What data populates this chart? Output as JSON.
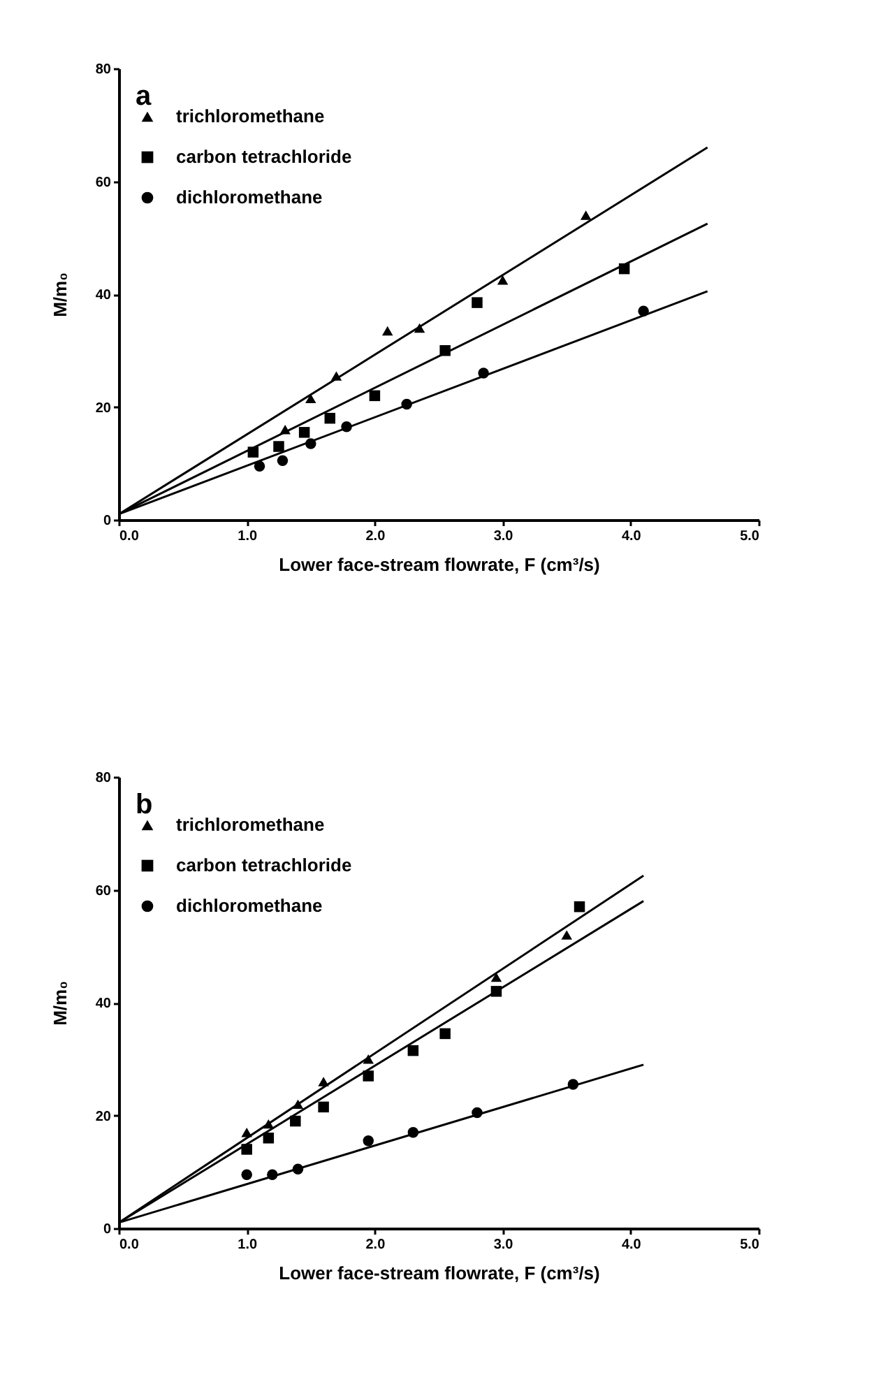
{
  "chart_data": [
    {
      "type": "scatter",
      "title": "a",
      "xlabel": "Lower face-stream flowrate, F (cm³/s)",
      "ylabel": "M/m₀",
      "xlim": [
        0,
        5
      ],
      "ylim": [
        0,
        80
      ],
      "xticks": [
        {
          "value": 0,
          "label": "0.0"
        },
        {
          "value": 1,
          "label": "1.0"
        },
        {
          "value": 2,
          "label": "2.0"
        },
        {
          "value": 3,
          "label": "3.0"
        },
        {
          "value": 4,
          "label": "4.0"
        },
        {
          "value": 5,
          "label": "5.0"
        }
      ],
      "yticks": [
        0,
        20,
        40,
        60,
        80
      ],
      "grid": false,
      "legend": "top left",
      "series": [
        {
          "name": "trichloromethane",
          "color": "#000000",
          "marker": "triangle",
          "x": [
            1.3,
            1.5,
            1.7,
            2.1,
            2.35,
            3.0,
            3.65
          ],
          "values": [
            16,
            21.5,
            25.5,
            33.5,
            34,
            42.5,
            54
          ]
        },
        {
          "name": "carbon  tetrachloride",
          "color": "#000000",
          "marker": "square",
          "x": [
            1.05,
            1.25,
            1.45,
            1.65,
            2.0,
            2.55,
            2.8,
            3.95
          ],
          "values": [
            12,
            13,
            15.5,
            18,
            22,
            30,
            38.5,
            44.5
          ]
        },
        {
          "name": "dichloromethane",
          "color": "#000000",
          "marker": "circle",
          "x": [
            1.1,
            1.28,
            1.5,
            1.78,
            2.25,
            2.85,
            4.1
          ],
          "values": [
            9.5,
            10.5,
            13.5,
            16.5,
            20.5,
            26,
            37
          ]
        },
        {
          "type": "line",
          "color": "#000000",
          "x": [
            0,
            4.6
          ],
          "values": [
            1,
            66
          ]
        },
        {
          "type": "line",
          "color": "#000000",
          "x": [
            0,
            4.6
          ],
          "values": [
            1,
            52.5
          ]
        },
        {
          "type": "line",
          "color": "#000000",
          "x": [
            0,
            4.6
          ],
          "values": [
            1,
            40.5
          ]
        }
      ]
    },
    {
      "type": "scatter",
      "title": "b",
      "xlabel": "Lower face-stream flowrate, F (cm³/s)",
      "ylabel": "M/m₀",
      "xlim": [
        0,
        5
      ],
      "ylim": [
        0,
        80
      ],
      "xticks": [
        {
          "value": 0,
          "label": "0.0"
        },
        {
          "value": 1,
          "label": "1.0"
        },
        {
          "value": 2,
          "label": "2.0"
        },
        {
          "value": 3,
          "label": "3.0"
        },
        {
          "value": 4,
          "label": "4.0"
        },
        {
          "value": 5,
          "label": "5.0"
        }
      ],
      "yticks": [
        0,
        20,
        40,
        60,
        80
      ],
      "grid": false,
      "legend": "top left",
      "series": [
        {
          "name": "trichloromethane",
          "color": "#000000",
          "marker": "triangle",
          "x": [
            1.0,
            1.17,
            1.4,
            1.6,
            1.95,
            2.95,
            3.5
          ],
          "values": [
            17,
            18.5,
            22,
            26,
            30,
            44.5,
            52
          ]
        },
        {
          "name": "carbon  tetrachloride",
          "color": "#000000",
          "marker": "square",
          "x": [
            1.0,
            1.17,
            1.38,
            1.6,
            1.95,
            2.3,
            2.55,
            2.95,
            3.6
          ],
          "values": [
            14,
            16,
            19,
            21.5,
            27,
            31.5,
            34.5,
            42,
            57
          ]
        },
        {
          "name": "dichloromethane",
          "color": "#000000",
          "marker": "circle",
          "x": [
            1.0,
            1.2,
            1.4,
            1.95,
            2.3,
            2.8,
            3.55
          ],
          "values": [
            9.5,
            9.5,
            10.5,
            15.5,
            17,
            20.5,
            25.5
          ]
        },
        {
          "type": "line",
          "color": "#000000",
          "x": [
            0,
            4.1
          ],
          "values": [
            1,
            62.5
          ]
        },
        {
          "type": "line",
          "color": "#000000",
          "x": [
            0,
            4.1
          ],
          "values": [
            1,
            58
          ]
        },
        {
          "type": "line",
          "color": "#000000",
          "x": [
            0,
            4.1
          ],
          "values": [
            1,
            29
          ]
        }
      ]
    }
  ]
}
